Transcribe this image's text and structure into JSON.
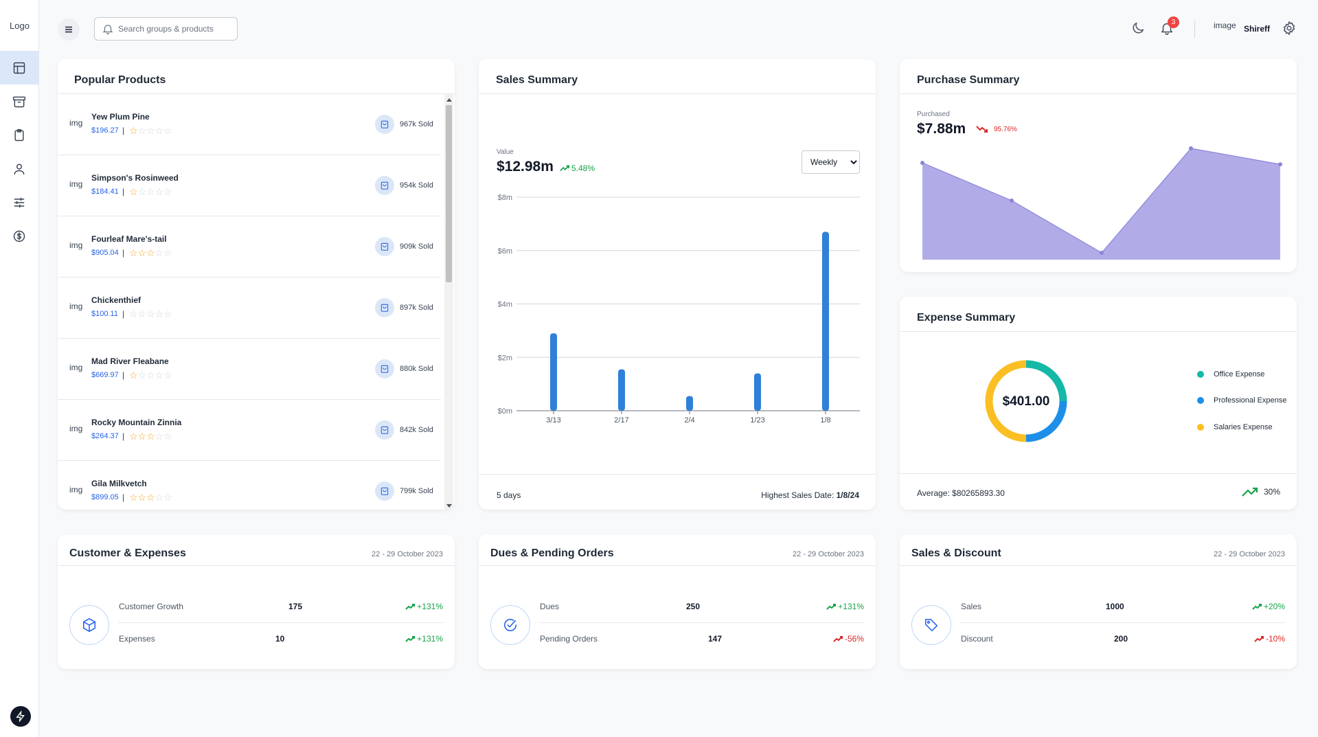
{
  "app": {
    "logo": "Logo"
  },
  "header": {
    "search_placeholder": "Search groups & products",
    "notification_count": "3",
    "profile_image": "image",
    "user_name": "Shireff"
  },
  "popular": {
    "title": "Popular Products",
    "items": [
      {
        "img": "img",
        "name": "Yew Plum Pine",
        "price": "$196.27",
        "rating": 1,
        "sold": "967k Sold"
      },
      {
        "img": "img",
        "name": "Simpson's Rosinweed",
        "price": "$184.41",
        "rating": 1,
        "sold": "954k Sold"
      },
      {
        "img": "img",
        "name": "Fourleaf Mare's-tail",
        "price": "$905.04",
        "rating": 3,
        "sold": "909k Sold"
      },
      {
        "img": "img",
        "name": "Chickenthief",
        "price": "$100.11",
        "rating": 0,
        "sold": "897k Sold"
      },
      {
        "img": "img",
        "name": "Mad River Fleabane",
        "price": "$669.97",
        "rating": 1,
        "sold": "880k Sold"
      },
      {
        "img": "img",
        "name": "Rocky Mountain Zinnia",
        "price": "$264.37",
        "rating": 3,
        "sold": "842k Sold"
      },
      {
        "img": "img",
        "name": "Gila Milkvetch",
        "price": "$899.05",
        "rating": 3,
        "sold": "799k Sold"
      }
    ]
  },
  "sales": {
    "title": "Sales Summary",
    "value_label": "Value",
    "value": "$12.98m",
    "change": "5.48%",
    "period": "Weekly",
    "period_options": [
      "Weekly"
    ],
    "footer_days": "5 days",
    "highest_label": "Highest Sales Date:",
    "highest_date": "1/8/24"
  },
  "purchase": {
    "title": "Purchase Summary",
    "label": "Purchased",
    "value": "$7.88m",
    "change": "95.76%"
  },
  "expense": {
    "title": "Expense Summary",
    "total": "$401.00",
    "legend": [
      {
        "label": "Office Expense",
        "color": "#14b8a6"
      },
      {
        "label": "Professional Expense",
        "color": "#1d8fe8"
      },
      {
        "label": "Salaries Expense",
        "color": "#fbbf24"
      }
    ],
    "average": "Average: $80265893.30",
    "average_change": "30%"
  },
  "bottom": {
    "customer": {
      "title": "Customer & Expenses",
      "date": "22 - 29 October 2023",
      "rows": [
        {
          "label": "Customer Growth",
          "value": "175",
          "change": "+131%",
          "dir": "up"
        },
        {
          "label": "Expenses",
          "value": "10",
          "change": "+131%",
          "dir": "up"
        }
      ]
    },
    "dues": {
      "title": "Dues & Pending Orders",
      "date": "22 - 29 October 2023",
      "rows": [
        {
          "label": "Dues",
          "value": "250",
          "change": "+131%",
          "dir": "up"
        },
        {
          "label": "Pending Orders",
          "value": "147",
          "change": "-56%",
          "dir": "down"
        }
      ]
    },
    "discount": {
      "title": "Sales & Discount",
      "date": "22 - 29 October 2023",
      "rows": [
        {
          "label": "Sales",
          "value": "1000",
          "change": "+20%",
          "dir": "up"
        },
        {
          "label": "Discount",
          "value": "200",
          "change": "-10%",
          "dir": "down"
        }
      ]
    }
  },
  "chart_data": [
    {
      "type": "bar",
      "categories": [
        "3/13",
        "2/17",
        "2/4",
        "1/23",
        "1/8"
      ],
      "values": [
        2.9,
        1.55,
        0.55,
        1.4,
        6.7
      ],
      "ylim": [
        0,
        8
      ],
      "yticks": [
        "$0m",
        "$2m",
        "$4m",
        "$6m",
        "$8m"
      ],
      "grid": true,
      "color": "#2f80d8"
    },
    {
      "type": "area",
      "values": [
        7.2,
        4.6,
        1.0,
        8.2,
        7.1
      ],
      "color": "#a9a3e6"
    },
    {
      "type": "pie",
      "values": [
        25,
        25,
        50
      ],
      "labels": [
        "Office Expense",
        "Professional Expense",
        "Salaries Expense"
      ],
      "center_label": "$401.00"
    }
  ]
}
